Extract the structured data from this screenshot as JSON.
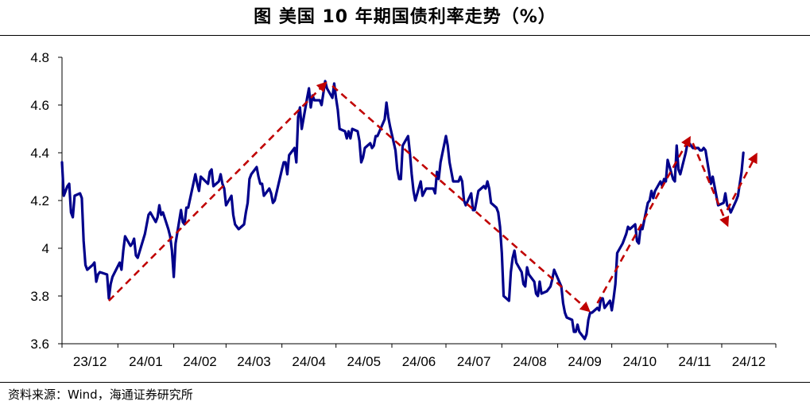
{
  "header": {
    "title": "图 美国 10 年期国债利率走势（%）"
  },
  "footer": {
    "source": "资料来源：Wind，海通证券研究所"
  },
  "chart_data": {
    "type": "line",
    "title": "图 美国 10 年期国债利率走势（%）",
    "xlabel": "",
    "ylabel": "",
    "ylim": [
      3.6,
      4.8
    ],
    "yticks": [
      3.6,
      3.8,
      4,
      4.2,
      4.4,
      4.6,
      4.8
    ],
    "ytick_labels": [
      "3.6",
      "3.8",
      "4",
      "4.2",
      "4.4",
      "4.6",
      "4.8"
    ],
    "x_range": [
      "2023-12-01",
      "2024-12-31"
    ],
    "xtick_labels": [
      "23/12",
      "24/01",
      "24/02",
      "24/03",
      "24/04",
      "24/05",
      "24/06",
      "24/07",
      "24/08",
      "24/09",
      "24/10",
      "24/11",
      "24/12"
    ],
    "grid": false,
    "legend": "none",
    "colors": {
      "line": "#00008B",
      "trend_arrows": "#C00000"
    },
    "series": [
      {
        "values": [
          [
            "2023-12-01",
            4.36
          ],
          [
            "2023-12-02",
            4.22
          ],
          [
            "2023-12-04",
            4.26
          ],
          [
            "2023-12-05",
            4.27
          ],
          [
            "2023-12-06",
            4.15
          ],
          [
            "2023-12-07",
            4.13
          ],
          [
            "2023-12-08",
            4.22
          ],
          [
            "2023-12-11",
            4.23
          ],
          [
            "2023-12-12",
            4.21
          ],
          [
            "2023-12-13",
            4.03
          ],
          [
            "2023-12-14",
            3.93
          ],
          [
            "2023-12-15",
            3.91
          ],
          [
            "2023-12-18",
            3.93
          ],
          [
            "2023-12-19",
            3.94
          ],
          [
            "2023-12-20",
            3.86
          ],
          [
            "2023-12-21",
            3.89
          ],
          [
            "2023-12-22",
            3.9
          ],
          [
            "2023-12-26",
            3.89
          ],
          [
            "2023-12-27",
            3.79
          ],
          [
            "2023-12-28",
            3.85
          ],
          [
            "2023-12-29",
            3.88
          ],
          [
            "2024-01-02",
            3.94
          ],
          [
            "2024-01-03",
            3.91
          ],
          [
            "2024-01-04",
            3.99
          ],
          [
            "2024-01-05",
            4.05
          ],
          [
            "2024-01-08",
            4.01
          ],
          [
            "2024-01-09",
            4.02
          ],
          [
            "2024-01-10",
            4.04
          ],
          [
            "2024-01-11",
            3.97
          ],
          [
            "2024-01-12",
            3.96
          ],
          [
            "2024-01-16",
            4.06
          ],
          [
            "2024-01-17",
            4.1
          ],
          [
            "2024-01-18",
            4.14
          ],
          [
            "2024-01-19",
            4.15
          ],
          [
            "2024-01-22",
            4.11
          ],
          [
            "2024-01-23",
            4.13
          ],
          [
            "2024-01-24",
            4.18
          ],
          [
            "2024-01-25",
            4.14
          ],
          [
            "2024-01-26",
            4.15
          ],
          [
            "2024-01-29",
            4.08
          ],
          [
            "2024-01-30",
            4.05
          ],
          [
            "2024-01-31",
            3.99
          ],
          [
            "2024-02-01",
            3.88
          ],
          [
            "2024-02-02",
            4.02
          ],
          [
            "2024-02-05",
            4.16
          ],
          [
            "2024-02-06",
            4.11
          ],
          [
            "2024-02-07",
            4.1
          ],
          [
            "2024-02-08",
            4.17
          ],
          [
            "2024-02-09",
            4.17
          ],
          [
            "2024-02-13",
            4.31
          ],
          [
            "2024-02-14",
            4.27
          ],
          [
            "2024-02-15",
            4.24
          ],
          [
            "2024-02-16",
            4.3
          ],
          [
            "2024-02-20",
            4.27
          ],
          [
            "2024-02-21",
            4.32
          ],
          [
            "2024-02-22",
            4.33
          ],
          [
            "2024-02-23",
            4.26
          ],
          [
            "2024-02-26",
            4.28
          ],
          [
            "2024-02-27",
            4.31
          ],
          [
            "2024-02-28",
            4.27
          ],
          [
            "2024-02-29",
            4.25
          ],
          [
            "2024-03-01",
            4.18
          ],
          [
            "2024-03-04",
            4.22
          ],
          [
            "2024-03-05",
            4.14
          ],
          [
            "2024-03-06",
            4.1
          ],
          [
            "2024-03-07",
            4.09
          ],
          [
            "2024-03-08",
            4.08
          ],
          [
            "2024-03-11",
            4.1
          ],
          [
            "2024-03-12",
            4.15
          ],
          [
            "2024-03-13",
            4.19
          ],
          [
            "2024-03-14",
            4.29
          ],
          [
            "2024-03-15",
            4.31
          ],
          [
            "2024-03-18",
            4.34
          ],
          [
            "2024-03-19",
            4.3
          ],
          [
            "2024-03-20",
            4.27
          ],
          [
            "2024-03-21",
            4.27
          ],
          [
            "2024-03-22",
            4.22
          ],
          [
            "2024-03-25",
            4.25
          ],
          [
            "2024-03-26",
            4.23
          ],
          [
            "2024-03-27",
            4.19
          ],
          [
            "2024-03-28",
            4.2
          ],
          [
            "2024-04-01",
            4.33
          ],
          [
            "2024-04-02",
            4.36
          ],
          [
            "2024-04-03",
            4.36
          ],
          [
            "2024-04-04",
            4.31
          ],
          [
            "2024-04-05",
            4.39
          ],
          [
            "2024-04-08",
            4.42
          ],
          [
            "2024-04-09",
            4.36
          ],
          [
            "2024-04-10",
            4.55
          ],
          [
            "2024-04-11",
            4.59
          ],
          [
            "2024-04-12",
            4.5
          ],
          [
            "2024-04-15",
            4.63
          ],
          [
            "2024-04-16",
            4.67
          ],
          [
            "2024-04-17",
            4.59
          ],
          [
            "2024-04-18",
            4.64
          ],
          [
            "2024-04-19",
            4.62
          ],
          [
            "2024-04-22",
            4.62
          ],
          [
            "2024-04-23",
            4.6
          ],
          [
            "2024-04-24",
            4.65
          ],
          [
            "2024-04-25",
            4.7
          ],
          [
            "2024-04-26",
            4.67
          ],
          [
            "2024-04-29",
            4.63
          ],
          [
            "2024-04-30",
            4.69
          ],
          [
            "2024-05-01",
            4.63
          ],
          [
            "2024-05-02",
            4.58
          ],
          [
            "2024-05-03",
            4.5
          ],
          [
            "2024-05-06",
            4.49
          ],
          [
            "2024-05-07",
            4.46
          ],
          [
            "2024-05-08",
            4.49
          ],
          [
            "2024-05-09",
            4.46
          ],
          [
            "2024-05-10",
            4.5
          ],
          [
            "2024-05-13",
            4.49
          ],
          [
            "2024-05-14",
            4.45
          ],
          [
            "2024-05-15",
            4.36
          ],
          [
            "2024-05-16",
            4.38
          ],
          [
            "2024-05-17",
            4.42
          ],
          [
            "2024-05-20",
            4.44
          ],
          [
            "2024-05-21",
            4.42
          ],
          [
            "2024-05-22",
            4.43
          ],
          [
            "2024-05-23",
            4.47
          ],
          [
            "2024-05-24",
            4.47
          ],
          [
            "2024-05-28",
            4.54
          ],
          [
            "2024-05-29",
            4.61
          ],
          [
            "2024-05-30",
            4.55
          ],
          [
            "2024-05-31",
            4.51
          ],
          [
            "2024-06-03",
            4.41
          ],
          [
            "2024-06-04",
            4.33
          ],
          [
            "2024-06-05",
            4.29
          ],
          [
            "2024-06-06",
            4.29
          ],
          [
            "2024-06-07",
            4.43
          ],
          [
            "2024-06-10",
            4.47
          ],
          [
            "2024-06-11",
            4.4
          ],
          [
            "2024-06-12",
            4.31
          ],
          [
            "2024-06-13",
            4.24
          ],
          [
            "2024-06-14",
            4.2
          ],
          [
            "2024-06-17",
            4.28
          ],
          [
            "2024-06-18",
            4.22
          ],
          [
            "2024-06-20",
            4.25
          ],
          [
            "2024-06-21",
            4.25
          ],
          [
            "2024-06-24",
            4.25
          ],
          [
            "2024-06-25",
            4.23
          ],
          [
            "2024-06-26",
            4.32
          ],
          [
            "2024-06-27",
            4.29
          ],
          [
            "2024-06-28",
            4.36
          ],
          [
            "2024-07-01",
            4.47
          ],
          [
            "2024-07-02",
            4.43
          ],
          [
            "2024-07-03",
            4.36
          ],
          [
            "2024-07-05",
            4.28
          ],
          [
            "2024-07-08",
            4.28
          ],
          [
            "2024-07-09",
            4.3
          ],
          [
            "2024-07-10",
            4.28
          ],
          [
            "2024-07-11",
            4.2
          ],
          [
            "2024-07-12",
            4.18
          ],
          [
            "2024-07-15",
            4.23
          ],
          [
            "2024-07-16",
            4.16
          ],
          [
            "2024-07-17",
            4.16
          ],
          [
            "2024-07-18",
            4.2
          ],
          [
            "2024-07-19",
            4.24
          ],
          [
            "2024-07-22",
            4.26
          ],
          [
            "2024-07-23",
            4.25
          ],
          [
            "2024-07-24",
            4.28
          ],
          [
            "2024-07-25",
            4.25
          ],
          [
            "2024-07-26",
            4.19
          ],
          [
            "2024-07-29",
            4.17
          ],
          [
            "2024-07-30",
            4.15
          ],
          [
            "2024-07-31",
            4.09
          ],
          [
            "2024-08-01",
            3.98
          ],
          [
            "2024-08-02",
            3.8
          ],
          [
            "2024-08-05",
            3.78
          ],
          [
            "2024-08-06",
            3.9
          ],
          [
            "2024-08-07",
            3.96
          ],
          [
            "2024-08-08",
            3.99
          ],
          [
            "2024-08-09",
            3.94
          ],
          [
            "2024-08-12",
            3.9
          ],
          [
            "2024-08-13",
            3.85
          ],
          [
            "2024-08-14",
            3.84
          ],
          [
            "2024-08-15",
            3.92
          ],
          [
            "2024-08-16",
            3.89
          ],
          [
            "2024-08-19",
            3.86
          ],
          [
            "2024-08-20",
            3.81
          ],
          [
            "2024-08-21",
            3.8
          ],
          [
            "2024-08-22",
            3.86
          ],
          [
            "2024-08-23",
            3.81
          ],
          [
            "2024-08-26",
            3.82
          ],
          [
            "2024-08-27",
            3.83
          ],
          [
            "2024-08-28",
            3.84
          ],
          [
            "2024-08-29",
            3.87
          ],
          [
            "2024-08-30",
            3.91
          ],
          [
            "2024-09-03",
            3.84
          ],
          [
            "2024-09-04",
            3.77
          ],
          [
            "2024-09-05",
            3.73
          ],
          [
            "2024-09-06",
            3.71
          ],
          [
            "2024-09-09",
            3.7
          ],
          [
            "2024-09-10",
            3.65
          ],
          [
            "2024-09-11",
            3.65
          ],
          [
            "2024-09-12",
            3.68
          ],
          [
            "2024-09-13",
            3.65
          ],
          [
            "2024-09-16",
            3.62
          ],
          [
            "2024-09-17",
            3.64
          ],
          [
            "2024-09-18",
            3.7
          ],
          [
            "2024-09-19",
            3.73
          ],
          [
            "2024-09-20",
            3.73
          ],
          [
            "2024-09-23",
            3.75
          ],
          [
            "2024-09-24",
            3.74
          ],
          [
            "2024-09-25",
            3.79
          ],
          [
            "2024-09-26",
            3.79
          ],
          [
            "2024-09-27",
            3.75
          ],
          [
            "2024-09-30",
            3.78
          ],
          [
            "2024-10-01",
            3.74
          ],
          [
            "2024-10-02",
            3.79
          ],
          [
            "2024-10-03",
            3.85
          ],
          [
            "2024-10-04",
            3.98
          ],
          [
            "2024-10-07",
            4.02
          ],
          [
            "2024-10-08",
            4.04
          ],
          [
            "2024-10-09",
            4.06
          ],
          [
            "2024-10-10",
            4.09
          ],
          [
            "2024-10-11",
            4.08
          ],
          [
            "2024-10-14",
            4.1
          ],
          [
            "2024-10-15",
            4.03
          ],
          [
            "2024-10-16",
            4.02
          ],
          [
            "2024-10-17",
            4.09
          ],
          [
            "2024-10-18",
            4.08
          ],
          [
            "2024-10-21",
            4.19
          ],
          [
            "2024-10-22",
            4.2
          ],
          [
            "2024-10-23",
            4.24
          ],
          [
            "2024-10-24",
            4.21
          ],
          [
            "2024-10-25",
            4.24
          ],
          [
            "2024-10-28",
            4.28
          ],
          [
            "2024-10-29",
            4.26
          ],
          [
            "2024-10-30",
            4.29
          ],
          [
            "2024-10-31",
            4.28
          ],
          [
            "2024-11-01",
            4.37
          ],
          [
            "2024-11-04",
            4.29
          ],
          [
            "2024-11-05",
            4.28
          ],
          [
            "2024-11-06",
            4.43
          ],
          [
            "2024-11-07",
            4.33
          ],
          [
            "2024-11-08",
            4.31
          ],
          [
            "2024-11-11",
            4.4
          ],
          [
            "2024-11-12",
            4.44
          ],
          [
            "2024-11-13",
            4.44
          ],
          [
            "2024-11-14",
            4.43
          ],
          [
            "2024-11-15",
            4.42
          ],
          [
            "2024-11-18",
            4.42
          ],
          [
            "2024-11-19",
            4.41
          ],
          [
            "2024-11-20",
            4.41
          ],
          [
            "2024-11-21",
            4.42
          ],
          [
            "2024-11-22",
            4.41
          ],
          [
            "2024-11-25",
            4.27
          ],
          [
            "2024-11-26",
            4.3
          ],
          [
            "2024-11-27",
            4.26
          ],
          [
            "2024-11-29",
            4.18
          ],
          [
            "2024-12-02",
            4.19
          ],
          [
            "2024-12-03",
            4.23
          ],
          [
            "2024-12-04",
            4.18
          ],
          [
            "2024-12-05",
            4.17
          ],
          [
            "2024-12-06",
            4.15
          ],
          [
            "2024-12-09",
            4.2
          ],
          [
            "2024-12-10",
            4.22
          ],
          [
            "2024-12-11",
            4.27
          ],
          [
            "2024-12-12",
            4.32
          ],
          [
            "2024-12-13",
            4.4
          ]
        ]
      }
    ],
    "trend_arrows": [
      {
        "from": [
          "2023-12-27",
          3.78
        ],
        "to": [
          "2024-04-25",
          4.69
        ]
      },
      {
        "from": [
          "2024-04-29",
          4.68
        ],
        "to": [
          "2024-09-18",
          3.74
        ]
      },
      {
        "from": [
          "2024-09-23",
          3.77
        ],
        "to": [
          "2024-11-13",
          4.46
        ]
      },
      {
        "from": [
          "2024-11-15",
          4.44
        ],
        "to": [
          "2024-12-04",
          4.1
        ]
      },
      {
        "from": [
          "2024-12-04",
          4.16
        ],
        "to": [
          "2024-12-20",
          4.39
        ]
      }
    ]
  }
}
